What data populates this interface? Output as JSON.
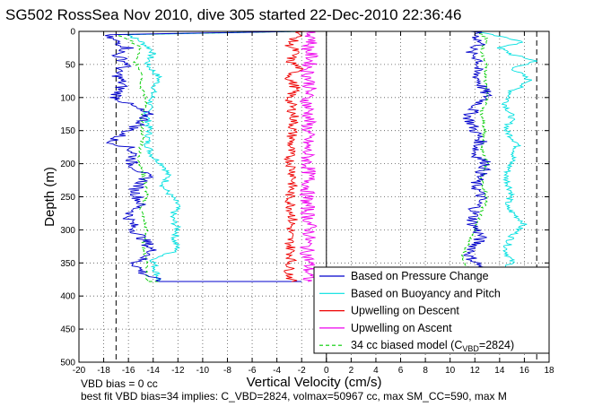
{
  "chart_data": {
    "type": "line",
    "title": "SG502 RossSea Nov 2010, dive 305 started 22-Dec-2010 22:36:46",
    "xlabel": "Vertical Velocity (cm/s)",
    "ylabel": "Depth (m)",
    "xlim": [
      -20,
      18
    ],
    "ylim": [
      0,
      500
    ],
    "y_reversed": true,
    "grid": "dotted",
    "xticks": [
      "-20",
      "-18",
      "-16",
      "-14",
      "-12",
      "-10",
      "-8",
      "-6",
      "-4",
      "-2",
      "0",
      "2",
      "4",
      "6",
      "8",
      "10",
      "12",
      "14",
      "16",
      "18"
    ],
    "yticks": [
      "0",
      "50",
      "100",
      "150",
      "200",
      "250",
      "300",
      "350",
      "400",
      "450",
      "500"
    ],
    "reference_lines": {
      "vertical_dashed": [
        -17,
        17
      ],
      "vertical_solid": [
        0
      ]
    },
    "legend": {
      "placement": "bottom-right",
      "entries": [
        "Based on Pressure Change",
        "Based on Buoyancy and Pitch",
        "Upwelling on Descent",
        "Upwelling on Ascent"
      ],
      "model_entry": {
        "prefix": "34 cc biased model (C",
        "sub": "VBD",
        "suffix": "=2824)"
      }
    },
    "footer": [
      "VBD bias = 0 cc",
      "best fit VBD bias=34 implies: C_VBD=2824, volmax=50967 cc, max SM_CC=590, max M"
    ],
    "colors": {
      "pressure": "#0000cc",
      "buoyancy": "#00e0e0",
      "descent": "#ee0000",
      "ascent": "#ee00ee",
      "model": "#00cc00"
    },
    "series": [
      {
        "name": "Based on Pressure Change",
        "key": "pressure",
        "color": "#0000cc",
        "descent": [
          [
            -2,
            0
          ],
          [
            -18,
            5
          ],
          [
            -17,
            15
          ],
          [
            -16,
            25
          ],
          [
            -17,
            35
          ],
          [
            -16,
            50
          ],
          [
            -17,
            60
          ],
          [
            -16.5,
            80
          ],
          [
            -17,
            100
          ],
          [
            -15.5,
            115
          ],
          [
            -14.5,
            125
          ],
          [
            -15,
            140
          ],
          [
            -16,
            150
          ],
          [
            -17.5,
            167
          ],
          [
            -16,
            175
          ],
          [
            -15.5,
            185
          ],
          [
            -15.8,
            200
          ],
          [
            -14.5,
            220
          ],
          [
            -15.5,
            240
          ],
          [
            -15,
            260
          ],
          [
            -16,
            280
          ],
          [
            -15.5,
            300
          ],
          [
            -14.5,
            320
          ],
          [
            -14,
            335
          ],
          [
            -15.5,
            350
          ],
          [
            -14.8,
            365
          ],
          [
            -13.5,
            378
          ],
          [
            -2,
            378
          ]
        ],
        "ascent": [
          [
            12,
            0
          ],
          [
            12.5,
            20
          ],
          [
            11.5,
            30
          ],
          [
            12.5,
            45
          ],
          [
            12,
            60
          ],
          [
            12.5,
            80
          ],
          [
            13,
            100
          ],
          [
            12,
            115
          ],
          [
            11.5,
            130
          ],
          [
            12,
            150
          ],
          [
            12.5,
            165
          ],
          [
            12,
            185
          ],
          [
            13,
            200
          ],
          [
            12.5,
            215
          ],
          [
            12,
            230
          ],
          [
            12.5,
            250
          ],
          [
            12,
            270
          ],
          [
            11.8,
            290
          ],
          [
            12.5,
            310
          ],
          [
            12,
            325
          ],
          [
            11.5,
            340
          ],
          [
            12.5,
            355
          ],
          [
            12,
            370
          ]
        ]
      },
      {
        "name": "Based on Buoyancy and Pitch",
        "key": "buoyancy",
        "color": "#00e0e0",
        "descent": [
          [
            -2,
            0
          ],
          [
            -16,
            5
          ],
          [
            -15,
            15
          ],
          [
            -14,
            30
          ],
          [
            -14.5,
            50
          ],
          [
            -13.5,
            70
          ],
          [
            -14,
            90
          ],
          [
            -14.2,
            105
          ],
          [
            -14.5,
            125
          ],
          [
            -14.3,
            150
          ],
          [
            -14.5,
            170
          ],
          [
            -14,
            190
          ],
          [
            -13,
            205
          ],
          [
            -12.8,
            220
          ],
          [
            -13.2,
            235
          ],
          [
            -12.5,
            250
          ],
          [
            -12,
            262
          ],
          [
            -12.5,
            280
          ],
          [
            -12,
            300
          ],
          [
            -12.3,
            315
          ],
          [
            -12,
            330
          ],
          [
            -14,
            345
          ],
          [
            -13.8,
            360
          ],
          [
            -13.5,
            378
          ],
          [
            -2,
            378
          ]
        ],
        "ascent": [
          [
            12,
            0
          ],
          [
            14,
            8
          ],
          [
            16,
            15
          ],
          [
            14,
            25
          ],
          [
            15,
            35
          ],
          [
            17,
            45
          ],
          [
            15,
            55
          ],
          [
            16.5,
            75
          ],
          [
            15,
            90
          ],
          [
            14.5,
            110
          ],
          [
            15,
            130
          ],
          [
            14.5,
            150
          ],
          [
            15.5,
            170
          ],
          [
            15,
            195
          ],
          [
            14.5,
            220
          ],
          [
            15,
            245
          ],
          [
            14.5,
            265
          ],
          [
            16,
            290
          ],
          [
            15,
            310
          ],
          [
            14.5,
            330
          ],
          [
            15,
            350
          ],
          [
            14,
            365
          ]
        ]
      },
      {
        "name": "Upwelling on Descent",
        "key": "descent",
        "color": "#ee0000",
        "path": [
          [
            -2,
            0
          ],
          [
            -2.5,
            10
          ],
          [
            -3,
            20
          ],
          [
            -2.5,
            30
          ],
          [
            -3,
            45
          ],
          [
            -2.2,
            55
          ],
          [
            -3,
            70
          ],
          [
            -2.5,
            85
          ],
          [
            -3,
            100
          ],
          [
            -2.6,
            130
          ],
          [
            -2.8,
            160
          ],
          [
            -3,
            190
          ],
          [
            -2.6,
            220
          ],
          [
            -3,
            250
          ],
          [
            -2.7,
            280
          ],
          [
            -3,
            310
          ],
          [
            -2.8,
            340
          ],
          [
            -3,
            360
          ],
          [
            -2.8,
            378
          ]
        ]
      },
      {
        "name": "Upwelling on Ascent",
        "key": "ascent",
        "color": "#ee00ee",
        "path": [
          [
            -1.5,
            0
          ],
          [
            -1,
            10
          ],
          [
            -1.5,
            25
          ],
          [
            -1.2,
            40
          ],
          [
            -1.5,
            60
          ],
          [
            -1.3,
            80
          ],
          [
            -1.6,
            100
          ],
          [
            -1.4,
            125
          ],
          [
            -1.5,
            150
          ],
          [
            -1.6,
            175
          ],
          [
            -1.5,
            200
          ],
          [
            -1.4,
            225
          ],
          [
            -1.6,
            250
          ],
          [
            -1.5,
            275
          ],
          [
            -1.3,
            300
          ],
          [
            -1.6,
            325
          ],
          [
            -1.4,
            350
          ],
          [
            -1.5,
            378
          ]
        ]
      },
      {
        "name": "34 cc biased model",
        "key": "model",
        "color": "#00cc00",
        "descent": [
          [
            -2,
            0
          ],
          [
            -17,
            5
          ],
          [
            -16,
            12
          ],
          [
            -15,
            25
          ],
          [
            -15.5,
            45
          ],
          [
            -14.8,
            65
          ],
          [
            -15,
            85
          ],
          [
            -14.5,
            105
          ],
          [
            -15,
            130
          ],
          [
            -14.8,
            160
          ],
          [
            -15.2,
            190
          ],
          [
            -14.8,
            215
          ],
          [
            -14.5,
            245
          ],
          [
            -15,
            270
          ],
          [
            -14.5,
            300
          ],
          [
            -14.8,
            325
          ],
          [
            -14.5,
            350
          ],
          [
            -14.5,
            378
          ],
          [
            -2,
            378
          ]
        ],
        "ascent": [
          [
            12,
            0
          ],
          [
            13,
            10
          ],
          [
            12.5,
            30
          ],
          [
            13,
            50
          ],
          [
            12.8,
            75
          ],
          [
            13,
            100
          ],
          [
            12.5,
            125
          ],
          [
            12.8,
            150
          ],
          [
            12.5,
            175
          ],
          [
            13,
            200
          ],
          [
            12.5,
            225
          ],
          [
            13,
            250
          ],
          [
            12.5,
            275
          ],
          [
            12,
            300
          ],
          [
            11.5,
            320
          ],
          [
            11,
            340
          ],
          [
            11.5,
            360
          ],
          [
            11.5,
            370
          ]
        ]
      }
    ]
  }
}
